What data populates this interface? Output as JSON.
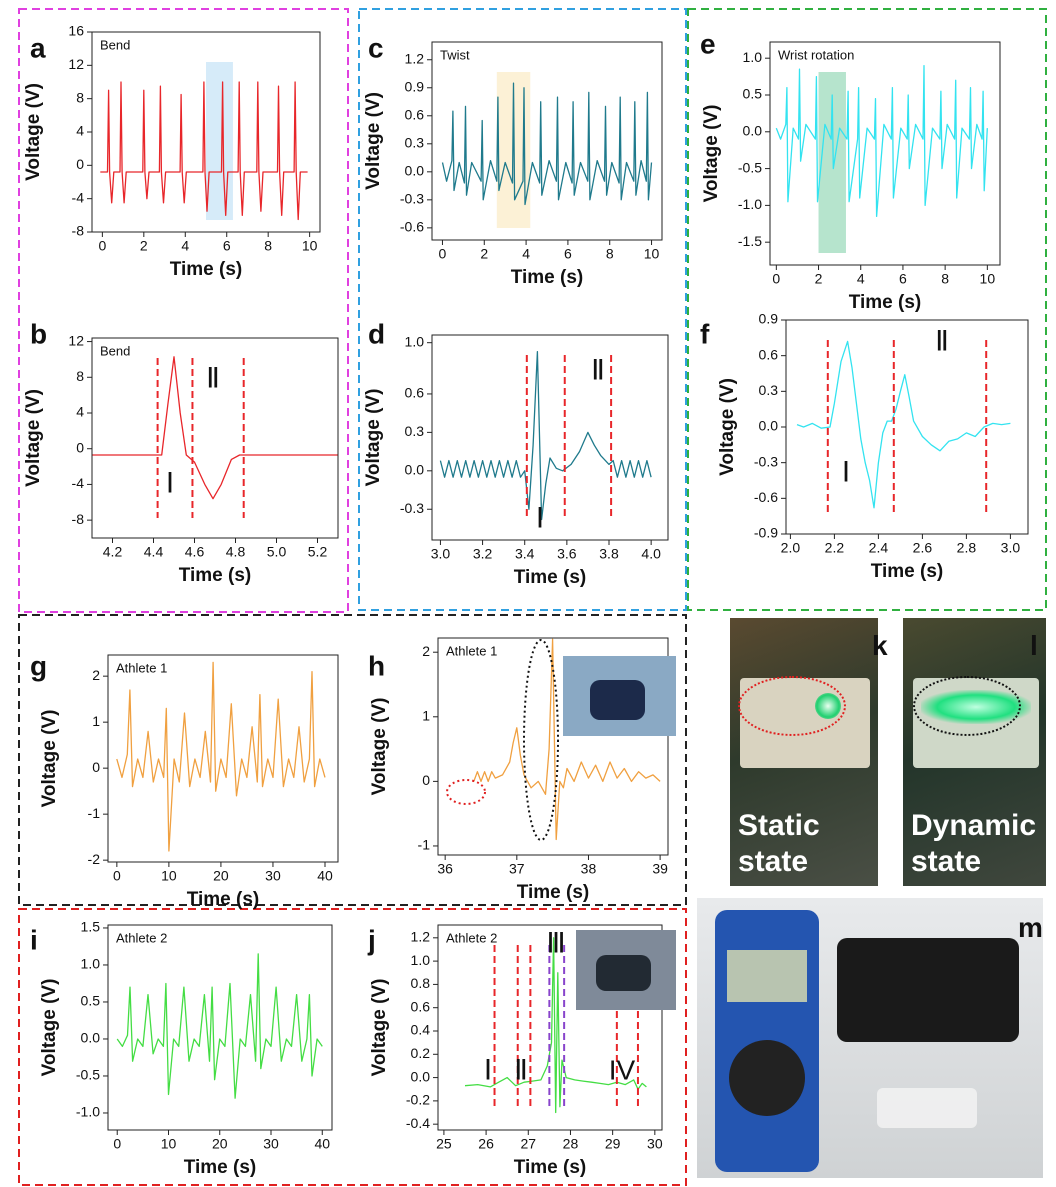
{
  "chart_data": [
    {
      "type": "line",
      "label": "a",
      "title": "Bend",
      "xlabel": "Time (s)",
      "ylabel": "Voltage (V)",
      "color": "#e8262a",
      "xlim": [
        -0.5,
        10.5
      ],
      "ylim": [
        -8,
        16
      ],
      "xticks": [
        0,
        2,
        4,
        6,
        8,
        10
      ],
      "yticks": [
        16,
        12,
        8,
        4,
        0,
        -4,
        -8
      ],
      "highlight": {
        "x": [
          5.0,
          6.3
        ],
        "color": "#cfe8f8"
      },
      "x": [
        -0.1,
        0.25,
        0.3,
        0.35,
        0.45,
        0.55,
        0.85,
        0.9,
        0.95,
        1.05,
        1.15,
        1.95,
        2.0,
        2.05,
        2.15,
        2.25,
        2.75,
        2.8,
        2.85,
        2.95,
        3.05,
        3.75,
        3.8,
        3.85,
        3.95,
        4.05,
        4.85,
        4.9,
        4.95,
        5.05,
        5.15,
        5.75,
        5.8,
        5.85,
        5.95,
        6.05,
        6.55,
        6.6,
        6.65,
        6.75,
        6.85,
        7.45,
        7.5,
        7.55,
        7.65,
        7.75,
        8.45,
        8.5,
        8.55,
        8.65,
        8.75,
        9.25,
        9.3,
        9.35,
        9.45,
        9.55,
        9.9
      ],
      "values": [
        -0.8,
        -0.8,
        9,
        -0.8,
        -4.5,
        -0.8,
        -0.8,
        10,
        -0.8,
        -4.5,
        -0.8,
        -0.8,
        9,
        -0.8,
        -4,
        -0.8,
        -0.8,
        9.5,
        -0.8,
        -4.5,
        -0.8,
        -0.8,
        8.5,
        -0.8,
        -4.5,
        -0.8,
        -0.8,
        10,
        -0.8,
        -5.5,
        -0.8,
        -0.8,
        10,
        -0.8,
        -6,
        -0.8,
        -0.8,
        10,
        -0.8,
        -6,
        -0.8,
        -0.8,
        10,
        -0.8,
        -5.5,
        -0.8,
        -0.8,
        9.5,
        -0.8,
        -6,
        -0.8,
        -0.8,
        10,
        -0.8,
        -6.5,
        -0.8,
        -0.8
      ]
    },
    {
      "type": "line",
      "label": "b",
      "title": "Bend",
      "xlabel": "Time (s)",
      "ylabel": "Voltage (V)",
      "color": "#e8262a",
      "xlim": [
        4.1,
        5.3
      ],
      "ylim": [
        -10,
        12.4
      ],
      "xticks": [
        4.2,
        4.4,
        4.6,
        4.8,
        {
          "value": 5,
          "label": "5.0"
        },
        5.2
      ],
      "yticks": [
        12,
        8,
        4,
        0,
        -4,
        -8
      ],
      "vlines": [
        {
          "x": 4.42,
          "color": "#e8262a"
        },
        {
          "x": 4.59,
          "color": "#e8262a"
        },
        {
          "x": 4.84,
          "color": "#e8262a"
        }
      ],
      "annotations": [
        "Ⅰ",
        "Ⅱ"
      ],
      "x": [
        4.1,
        4.44,
        4.47,
        4.5,
        4.53,
        4.56,
        4.6,
        4.65,
        4.69,
        4.73,
        4.78,
        4.82,
        5.3
      ],
      "values": [
        -0.7,
        -0.7,
        5,
        10.3,
        4,
        -0.7,
        -1.5,
        -4,
        -5.6,
        -4,
        -1.2,
        -0.7,
        -0.7
      ]
    },
    {
      "type": "line",
      "label": "c",
      "title": "Twist",
      "xlabel": "Time (s)",
      "ylabel": "Voltage (V)",
      "color": "#1f7a8c",
      "xlim": [
        -0.5,
        10.5
      ],
      "ylim": [
        -0.73,
        1.39
      ],
      "xticks": [
        0,
        2,
        4,
        6,
        8,
        10
      ],
      "yticks": [
        1.2,
        0.9,
        0.6,
        0.3,
        {
          "value": 0,
          "label": "0.0"
        },
        -0.3,
        -0.6
      ],
      "highlight": {
        "x": [
          2.6,
          4.2
        ],
        "color": "#fbefcf"
      },
      "x": [
        0,
        0.2,
        0.45,
        0.5,
        0.55,
        0.8,
        1.05,
        1.1,
        1.15,
        1.4,
        1.85,
        1.9,
        1.95,
        2.3,
        2.6,
        2.65,
        2.7,
        3.0,
        3.35,
        3.4,
        3.45,
        3.85,
        3.9,
        3.95,
        4.3,
        4.65,
        4.7,
        4.75,
        5.1,
        5.45,
        5.5,
        5.55,
        5.9,
        6.2,
        6.25,
        6.3,
        6.6,
        6.95,
        7.0,
        7.05,
        7.4,
        7.75,
        7.8,
        7.85,
        8.1,
        8.45,
        8.5,
        8.55,
        8.8,
        9.15,
        9.2,
        9.25,
        9.5,
        9.75,
        9.8,
        9.85,
        10
      ],
      "values": [
        0.1,
        -0.1,
        0.12,
        0.65,
        -0.2,
        0.1,
        -0.12,
        0.7,
        -0.25,
        0.1,
        -0.1,
        0.55,
        -0.3,
        0.12,
        -0.1,
        0.8,
        -0.2,
        0.1,
        -0.12,
        0.95,
        -0.3,
        -0.1,
        0.9,
        -0.35,
        0.1,
        -0.12,
        0.75,
        -0.25,
        0.12,
        -0.1,
        0.8,
        -0.3,
        0.1,
        -0.12,
        0.75,
        -0.25,
        0.1,
        -0.1,
        0.85,
        -0.3,
        0.12,
        -0.1,
        0.7,
        -0.25,
        0.1,
        -0.12,
        0.8,
        -0.3,
        0.1,
        -0.1,
        0.75,
        -0.25,
        0.12,
        -0.1,
        0.85,
        -0.3,
        0.1
      ]
    },
    {
      "type": "line",
      "label": "d",
      "xlabel": "Time (s)",
      "ylabel": "Voltage (V)",
      "color": "#1f7a8c",
      "xlim": [
        2.96,
        4.08
      ],
      "ylim": [
        -0.54,
        1.06
      ],
      "xticks": [
        {
          "value": 3,
          "label": "3.0"
        },
        3.2,
        3.4,
        3.6,
        3.8,
        {
          "value": 4,
          "label": "4.0"
        }
      ],
      "yticks": [
        {
          "value": 1,
          "label": "1.0"
        },
        0.6,
        0.3,
        {
          "value": 0,
          "label": "0.0"
        },
        -0.3
      ],
      "vlines": [
        {
          "x": 3.41,
          "color": "#e8262a"
        },
        {
          "x": 3.59,
          "color": "#e8262a"
        },
        {
          "x": 3.81,
          "color": "#e8262a"
        }
      ],
      "annotations": [
        "Ⅰ",
        "Ⅱ"
      ],
      "x": [
        3.0,
        3.02,
        3.04,
        3.06,
        3.08,
        3.1,
        3.12,
        3.14,
        3.16,
        3.18,
        3.2,
        3.22,
        3.24,
        3.26,
        3.28,
        3.3,
        3.32,
        3.34,
        3.36,
        3.38,
        3.4,
        3.42,
        3.44,
        3.46,
        3.48,
        3.5,
        3.52,
        3.55,
        3.58,
        3.62,
        3.66,
        3.7,
        3.73,
        3.76,
        3.8,
        3.82,
        3.84,
        3.86,
        3.88,
        3.9,
        3.92,
        3.94,
        3.96,
        3.98,
        4.0
      ],
      "values": [
        0.08,
        -0.05,
        0.08,
        -0.05,
        0.08,
        -0.05,
        0.08,
        -0.05,
        0.08,
        -0.05,
        0.08,
        -0.05,
        0.08,
        -0.05,
        0.08,
        -0.05,
        0.08,
        -0.05,
        0.08,
        -0.05,
        0.0,
        -0.3,
        0.2,
        0.93,
        -0.38,
        -0.1,
        0.1,
        0.02,
        0.0,
        0.05,
        0.15,
        0.3,
        0.2,
        0.12,
        0.05,
        0.08,
        -0.05,
        0.08,
        -0.05,
        0.08,
        -0.05,
        0.08,
        -0.05,
        0.08,
        -0.05
      ]
    },
    {
      "type": "line",
      "label": "e",
      "title": "Wrist rotation",
      "xlabel": "Time (s)",
      "ylabel": "Voltage (V)",
      "color": "#33e3f0",
      "xlim": [
        -0.3,
        10.6
      ],
      "ylim": [
        -1.81,
        1.22
      ],
      "xticks": [
        0,
        2,
        4,
        6,
        8,
        10
      ],
      "yticks": [
        {
          "value": 1,
          "label": "1.0"
        },
        0.5,
        {
          "value": 0,
          "label": "0.0"
        },
        -0.5,
        {
          "value": -1,
          "label": "-1.0"
        },
        -1.5
      ],
      "highlight": {
        "x": [
          2.0,
          3.3
        ],
        "color": "#a9dfc4"
      },
      "x": [
        0,
        0.2,
        0.45,
        0.5,
        0.55,
        0.8,
        1.05,
        1.1,
        1.15,
        1.4,
        1.85,
        1.9,
        1.95,
        2.3,
        2.6,
        2.65,
        2.7,
        3.0,
        3.35,
        3.4,
        3.45,
        3.85,
        3.9,
        3.95,
        4.3,
        4.65,
        4.7,
        4.75,
        5.1,
        5.45,
        5.5,
        5.55,
        5.9,
        6.2,
        6.25,
        6.3,
        6.6,
        6.95,
        7.0,
        7.05,
        7.4,
        7.75,
        7.8,
        7.85,
        8.1,
        8.45,
        8.5,
        8.55,
        8.8,
        9.15,
        9.2,
        9.25,
        9.5,
        9.75,
        9.8,
        9.85,
        10
      ],
      "values": [
        0.05,
        -0.1,
        0.1,
        0.6,
        -0.95,
        0.05,
        -0.1,
        0.85,
        -0.4,
        0.1,
        -0.1,
        0.75,
        -0.95,
        0.1,
        -0.1,
        0.5,
        -0.5,
        0.05,
        -0.1,
        0.55,
        -0.95,
        -0.1,
        0.6,
        -0.9,
        0.05,
        -0.1,
        0.45,
        -1.15,
        0.1,
        -0.1,
        0.6,
        -0.9,
        0.05,
        -0.1,
        0.5,
        -0.5,
        0.1,
        -0.1,
        0.9,
        -1.0,
        0.05,
        -0.1,
        0.55,
        -0.5,
        0.1,
        -0.1,
        0.7,
        -0.9,
        0.05,
        -0.1,
        0.6,
        -0.5,
        0.1,
        -0.1,
        0.55,
        -0.8,
        0.05
      ]
    },
    {
      "type": "line",
      "label": "f",
      "xlabel": "Time (s)",
      "ylabel": "Voltage (V)",
      "color": "#33e3f0",
      "xlim": [
        1.98,
        3.08
      ],
      "ylim": [
        -0.9,
        0.9
      ],
      "xticks": [
        {
          "value": 2,
          "label": "2.0"
        },
        2.2,
        2.4,
        2.6,
        2.8,
        {
          "value": 3,
          "label": "3.0"
        }
      ],
      "yticks": [
        0.9,
        0.6,
        0.3,
        {
          "value": 0,
          "label": "0.0"
        },
        -0.3,
        -0.6,
        -0.9
      ],
      "vlines": [
        {
          "x": 2.17,
          "color": "#e8262a"
        },
        {
          "x": 2.47,
          "color": "#e8262a"
        },
        {
          "x": 2.89,
          "color": "#e8262a"
        }
      ],
      "annotations": [
        "Ⅰ",
        "Ⅱ"
      ],
      "x": [
        2.03,
        2.06,
        2.1,
        2.14,
        2.18,
        2.2,
        2.23,
        2.26,
        2.28,
        2.3,
        2.32,
        2.34,
        2.36,
        2.38,
        2.4,
        2.42,
        2.44,
        2.46,
        2.48,
        2.5,
        2.52,
        2.54,
        2.56,
        2.6,
        2.64,
        2.68,
        2.72,
        2.76,
        2.8,
        2.84,
        2.88,
        2.92,
        2.96,
        3.0
      ],
      "values": [
        0.02,
        0.0,
        0.03,
        -0.01,
        0.0,
        0.2,
        0.55,
        0.72,
        0.5,
        0.2,
        -0.1,
        -0.3,
        -0.45,
        -0.68,
        -0.3,
        -0.05,
        0.05,
        0.05,
        0.15,
        0.3,
        0.44,
        0.25,
        0.05,
        -0.08,
        -0.15,
        -0.2,
        -0.12,
        -0.1,
        -0.05,
        -0.08,
        0.0,
        0.03,
        0.02,
        0.03
      ]
    },
    {
      "type": "line",
      "label": "g",
      "title": "Athlete 1",
      "xlabel": "Time (s)",
      "ylabel": "Voltage (V)",
      "color": "#f0a040",
      "xlim": [
        -1.7,
        42.5
      ],
      "ylim": [
        -2.04,
        2.46
      ],
      "xticks": [
        0,
        10,
        20,
        30,
        40
      ],
      "yticks": [
        2,
        1,
        0,
        -1,
        -2
      ],
      "x": [
        0,
        1,
        2,
        2.5,
        3,
        4,
        5,
        6,
        7,
        8,
        9,
        9.5,
        10,
        11,
        12,
        13,
        14,
        15,
        16,
        17,
        18,
        18.5,
        19,
        20,
        21,
        22,
        23,
        24,
        25,
        26,
        27,
        27.5,
        28,
        29,
        30,
        31,
        32,
        33,
        34,
        35,
        36,
        37,
        37.5,
        38,
        39,
        40
      ],
      "values": [
        0.2,
        -0.2,
        0.3,
        1.7,
        -0.4,
        0.2,
        -0.2,
        0.8,
        -0.3,
        0.2,
        -0.2,
        1.3,
        -1.8,
        0.2,
        -0.3,
        1.2,
        -0.4,
        0.2,
        -0.2,
        0.8,
        -0.3,
        2.3,
        -0.5,
        0.2,
        -0.2,
        1.4,
        -0.6,
        0.2,
        -0.2,
        0.9,
        -0.3,
        1.6,
        -0.4,
        0.2,
        -0.2,
        1.5,
        -0.4,
        0.2,
        -0.2,
        0.9,
        -0.3,
        0.2,
        2.1,
        -0.4,
        0.2,
        -0.2
      ]
    },
    {
      "type": "line",
      "label": "h",
      "title": "Athlete 1",
      "xlabel": "Time (s)",
      "ylabel": "Voltage (V)",
      "color": "#f0a040",
      "xlim": [
        35.9,
        39.11
      ],
      "ylim": [
        -1.14,
        2.22
      ],
      "xticks": [
        36,
        37,
        38,
        39
      ],
      "yticks": [
        2,
        1,
        0,
        -1
      ],
      "x": [
        36.4,
        36.45,
        36.5,
        36.55,
        36.6,
        36.65,
        36.7,
        36.8,
        36.9,
        36.95,
        37.0,
        37.05,
        37.1,
        37.2,
        37.3,
        37.4,
        37.45,
        37.5,
        37.55,
        37.6,
        37.65,
        37.7,
        37.8,
        37.9,
        38.0,
        38.1,
        38.2,
        38.3,
        38.4,
        38.5,
        38.6,
        38.7,
        38.8,
        38.9,
        39.0
      ],
      "values": [
        0.0,
        0.15,
        0.0,
        0.15,
        0.0,
        0.15,
        0.05,
        0.1,
        0.3,
        0.6,
        0.83,
        0.4,
        0.1,
        -0.1,
        0.0,
        -0.2,
        0.5,
        2.2,
        -0.9,
        0.0,
        -0.1,
        0.2,
        0.0,
        0.3,
        0.05,
        0.25,
        0.0,
        0.3,
        0.05,
        0.2,
        0.0,
        0.15,
        0.05,
        0.1,
        0.0
      ]
    },
    {
      "type": "line",
      "label": "i",
      "title": "Athlete 2",
      "xlabel": "Time (s)",
      "ylabel": "Voltage (V)",
      "color": "#44dd44",
      "xlim": [
        -1.8,
        41.9
      ],
      "ylim": [
        -1.23,
        1.54
      ],
      "xticks": [
        0,
        10,
        20,
        30,
        40
      ],
      "yticks": [
        1.5,
        {
          "value": 1,
          "label": "1.0"
        },
        0.5,
        {
          "value": 0,
          "label": "0.0"
        },
        -0.5,
        {
          "value": -1,
          "label": "-1.0"
        }
      ],
      "x": [
        0,
        1,
        2,
        2.5,
        3,
        4,
        5,
        6,
        7,
        8,
        9,
        9.5,
        10,
        11,
        12,
        13,
        14,
        15,
        16,
        17,
        18,
        18.5,
        19,
        20,
        21,
        22,
        23,
        24,
        25,
        26,
        27,
        27.5,
        28,
        29,
        30,
        31,
        32,
        33,
        34,
        35,
        36,
        37,
        37.5,
        38,
        39,
        40
      ],
      "values": [
        0.0,
        -0.1,
        0.05,
        0.7,
        -0.3,
        0.0,
        -0.1,
        0.6,
        -0.2,
        0.0,
        -0.1,
        0.75,
        -0.75,
        0.0,
        -0.1,
        0.7,
        -0.3,
        0.0,
        -0.1,
        0.6,
        -0.3,
        0.7,
        -0.55,
        0.0,
        -0.1,
        0.75,
        -0.8,
        0.0,
        -0.1,
        0.6,
        -0.3,
        1.15,
        -0.4,
        0.0,
        -0.1,
        0.7,
        -0.3,
        0.0,
        -0.1,
        0.6,
        -0.3,
        0.0,
        0.6,
        -0.5,
        0.0,
        -0.1
      ]
    },
    {
      "type": "line",
      "label": "j",
      "title": "Athlete 2",
      "xlabel": "Time (s)",
      "ylabel": "Voltage (V)",
      "color": "#44dd44",
      "xlim": [
        24.86,
        30.17
      ],
      "ylim": [
        -0.45,
        1.31
      ],
      "xticks": [
        25,
        26,
        27,
        28,
        29,
        30
      ],
      "yticks": [
        1.2,
        {
          "value": 1,
          "label": "1.0"
        },
        0.8,
        0.6,
        0.4,
        0.2,
        {
          "value": 0,
          "label": "0.0"
        },
        -0.2,
        -0.4
      ],
      "vlines": [
        {
          "x": 26.2,
          "color": "#e8262a"
        },
        {
          "x": 26.75,
          "color": "#e8262a"
        },
        {
          "x": 27.05,
          "color": "#e8262a"
        },
        {
          "x": 27.5,
          "color": "#8844cc"
        },
        {
          "x": 27.85,
          "color": "#8844cc"
        },
        {
          "x": 29.1,
          "color": "#e8262a"
        },
        {
          "x": 29.6,
          "color": "#e8262a"
        }
      ],
      "annotations": [
        "Ⅰ",
        "Ⅱ",
        "Ⅲ",
        "IV"
      ],
      "x": [
        25.5,
        25.8,
        26.1,
        26.3,
        26.5,
        26.7,
        26.9,
        27.1,
        27.3,
        27.45,
        27.55,
        27.6,
        27.65,
        27.7,
        27.75,
        27.8,
        27.9,
        28.1,
        28.3,
        28.5,
        28.7,
        28.9,
        29.1,
        29.3,
        29.5,
        29.6,
        29.7,
        29.8
      ],
      "values": [
        -0.07,
        -0.06,
        -0.08,
        -0.04,
        0.0,
        -0.07,
        -0.04,
        -0.03,
        -0.02,
        0.1,
        0.3,
        1.2,
        -0.3,
        0.9,
        -0.25,
        0.15,
        0.0,
        -0.02,
        -0.03,
        -0.04,
        -0.05,
        -0.06,
        -0.04,
        -0.06,
        -0.02,
        -0.1,
        -0.05,
        -0.08
      ]
    }
  ],
  "photos": [
    {
      "label": "k",
      "caption": "Static state"
    },
    {
      "label": "l",
      "caption": "Dynamic state"
    },
    {
      "label": "m"
    }
  ]
}
